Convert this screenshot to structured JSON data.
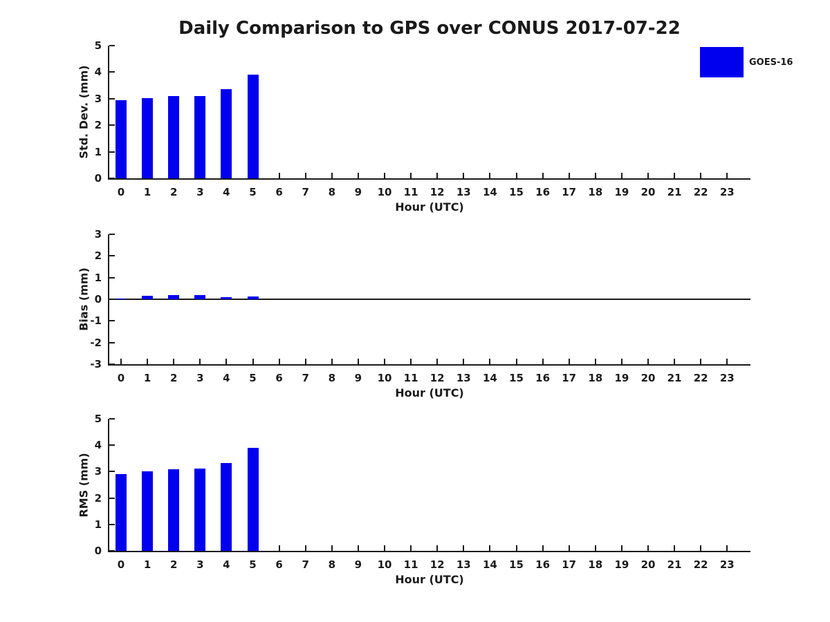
{
  "title": "Daily Comparison to GPS over CONUS 2017-07-22",
  "legend": {
    "label": "GOES-16",
    "color": "#0000ee"
  },
  "colors": {
    "bar": "#0000ee",
    "axis": "#1a1a1a",
    "text": "#1a1a1a",
    "background": "#ffffff"
  },
  "chart_data": [
    {
      "type": "bar",
      "name": "std-dev",
      "ylabel": "Std. Dev. (mm)",
      "xlabel": "Hour (UTC)",
      "ylim": [
        0,
        5
      ],
      "yticks": [
        0,
        1,
        2,
        3,
        4,
        5
      ],
      "categories": [
        "0",
        "1",
        "2",
        "3",
        "4",
        "5",
        "6",
        "7",
        "8",
        "9",
        "10",
        "11",
        "12",
        "13",
        "14",
        "15",
        "16",
        "17",
        "18",
        "19",
        "20",
        "21",
        "22",
        "23"
      ],
      "zero_line": false,
      "legend_position": "outside-top-right",
      "grid": false,
      "series": [
        {
          "name": "GOES-16",
          "values": [
            2.93,
            3.01,
            3.11,
            3.11,
            3.35,
            3.91,
            null,
            null,
            null,
            null,
            null,
            null,
            null,
            null,
            null,
            null,
            null,
            null,
            null,
            null,
            null,
            null,
            null,
            null
          ]
        }
      ]
    },
    {
      "type": "bar",
      "name": "bias",
      "ylabel": "Bias (mm)",
      "xlabel": "Hour (UTC)",
      "ylim": [
        -3,
        3
      ],
      "yticks": [
        -3,
        -2,
        -1,
        0,
        1,
        2,
        3
      ],
      "categories": [
        "0",
        "1",
        "2",
        "3",
        "4",
        "5",
        "6",
        "7",
        "8",
        "9",
        "10",
        "11",
        "12",
        "13",
        "14",
        "15",
        "16",
        "17",
        "18",
        "19",
        "20",
        "21",
        "22",
        "23"
      ],
      "zero_line": true,
      "grid": false,
      "series": [
        {
          "name": "GOES-16",
          "values": [
            0.04,
            0.17,
            0.2,
            0.2,
            0.08,
            0.12,
            null,
            null,
            null,
            null,
            null,
            null,
            null,
            null,
            null,
            null,
            null,
            null,
            null,
            null,
            null,
            null,
            null,
            null
          ]
        }
      ]
    },
    {
      "type": "bar",
      "name": "rms",
      "ylabel": "RMS (mm)",
      "xlabel": "Hour (UTC)",
      "ylim": [
        0,
        5
      ],
      "yticks": [
        0,
        1,
        2,
        3,
        4,
        5
      ],
      "categories": [
        "0",
        "1",
        "2",
        "3",
        "4",
        "5",
        "6",
        "7",
        "8",
        "9",
        "10",
        "11",
        "12",
        "13",
        "14",
        "15",
        "16",
        "17",
        "18",
        "19",
        "20",
        "21",
        "22",
        "23"
      ],
      "zero_line": false,
      "grid": false,
      "series": [
        {
          "name": "GOES-16",
          "values": [
            2.91,
            3.02,
            3.09,
            3.12,
            3.33,
            3.89,
            null,
            null,
            null,
            null,
            null,
            null,
            null,
            null,
            null,
            null,
            null,
            null,
            null,
            null,
            null,
            null,
            null,
            null
          ]
        }
      ]
    }
  ]
}
